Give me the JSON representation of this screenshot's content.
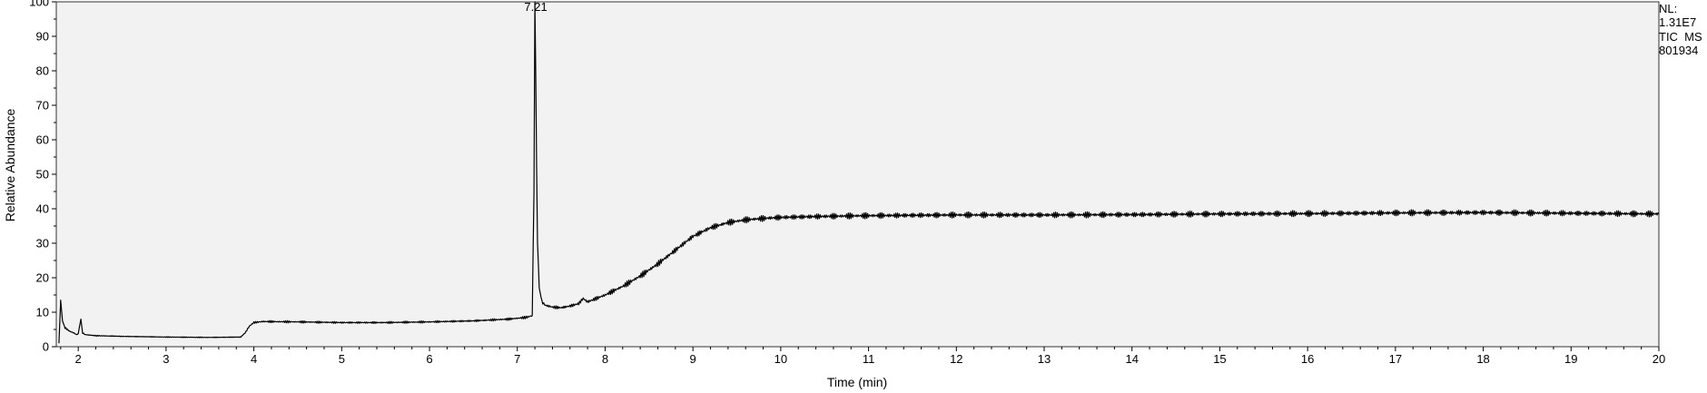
{
  "chart_data": {
    "type": "line",
    "title": "",
    "xlabel": "Time (min)",
    "ylabel": "Relative Abundance",
    "xlim": [
      1.75,
      20
    ],
    "ylim": [
      0,
      100
    ],
    "x_ticks": [
      2,
      3,
      4,
      5,
      6,
      7,
      8,
      9,
      10,
      11,
      12,
      13,
      14,
      15,
      16,
      17,
      18,
      19,
      20
    ],
    "y_ticks": [
      0,
      10,
      20,
      30,
      40,
      50,
      60,
      70,
      80,
      90,
      100
    ],
    "grid": false,
    "colors": {
      "plot_background": "#f2f2f2",
      "line": "#000000"
    },
    "series": [
      {
        "x": [
          1.78,
          1.8,
          1.82,
          1.85,
          1.9,
          1.95,
          1.98,
          2.0,
          2.03,
          2.05,
          2.08,
          2.2,
          2.5,
          3.0,
          3.5,
          3.85,
          3.9,
          3.95,
          4.0,
          4.1,
          4.5,
          5.0,
          5.5,
          6.0,
          6.5,
          6.9,
          7.1,
          7.17,
          7.19,
          7.2,
          7.21,
          7.22,
          7.23,
          7.25,
          7.28,
          7.32,
          7.4,
          7.5,
          7.6,
          7.7,
          7.75,
          7.8,
          8.0,
          8.2,
          8.4,
          8.6,
          8.8,
          9.0,
          9.2,
          9.4,
          9.6,
          9.8,
          10.0,
          10.5,
          11.0,
          12.0,
          13.0,
          14.0,
          15.0,
          16.0,
          17.0,
          18.0,
          19.0,
          20.0
        ],
        "y": [
          1,
          13.5,
          7.5,
          5.5,
          4.5,
          4,
          3.5,
          3.8,
          8,
          4,
          3.5,
          3.2,
          3.0,
          2.8,
          2.7,
          2.8,
          4,
          6,
          7,
          7.3,
          7.2,
          7,
          7,
          7.2,
          7.5,
          8,
          8.5,
          9,
          45,
          100,
          80,
          52,
          30,
          17,
          13,
          12,
          11.5,
          11.3,
          11.8,
          12.5,
          14,
          13,
          15,
          17.5,
          20.5,
          24,
          28,
          32,
          34.5,
          36,
          36.8,
          37.2,
          37.5,
          37.8,
          38,
          38.2,
          38.2,
          38.3,
          38.5,
          38.6,
          38.8,
          38.9,
          38.7,
          38.5
        ]
      }
    ],
    "annotations": [
      {
        "x": 7.21,
        "y": 100,
        "text": "7.21"
      }
    ]
  },
  "info": {
    "lines": [
      "NL:",
      "1.31E7",
      "TIC  MS",
      "801934"
    ]
  }
}
